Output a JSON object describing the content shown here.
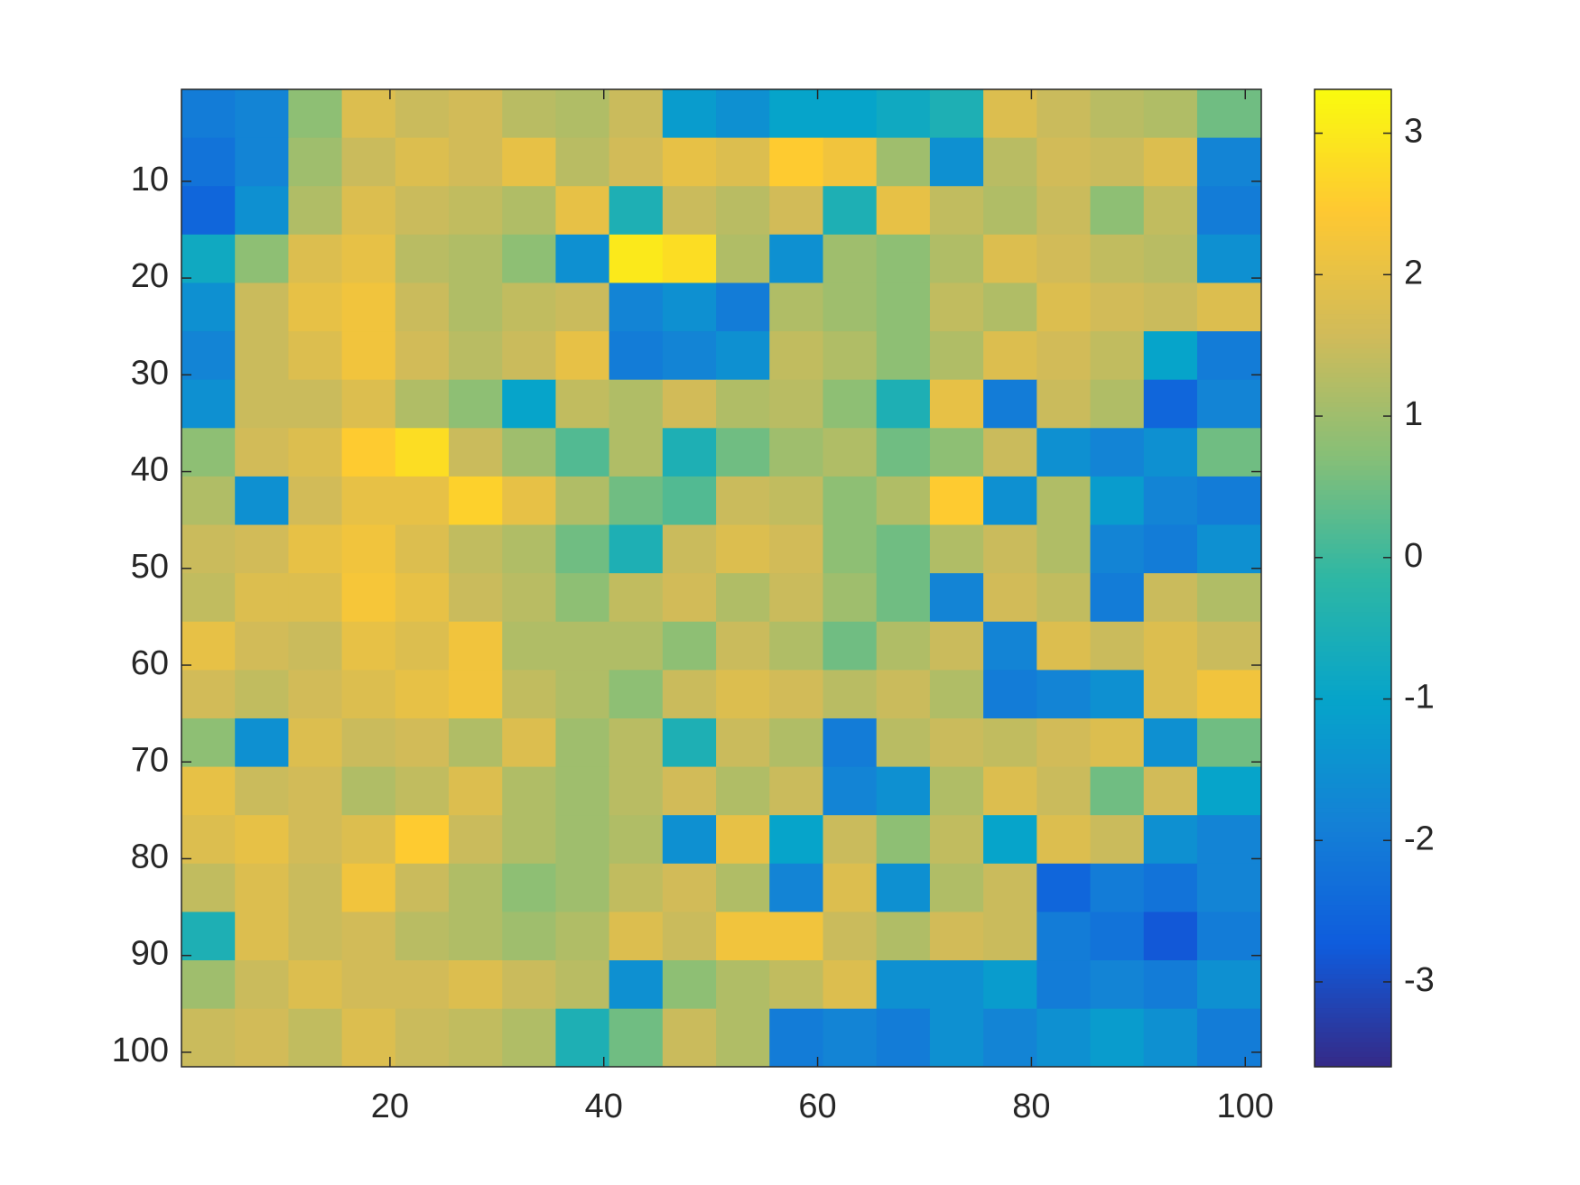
{
  "chart_data": {
    "type": "heatmap",
    "x_edges": [
      0.5,
      5.5,
      10.5,
      15.5,
      20.5,
      25.5,
      30.5,
      35.5,
      40.5,
      45.5,
      50.5,
      55.5,
      60.5,
      65.5,
      70.5,
      75.5,
      80.5,
      85.5,
      90.5,
      95.5,
      101.5
    ],
    "y_edges": [
      0.5,
      5.5,
      10.5,
      15.5,
      20.5,
      25.5,
      30.5,
      35.5,
      40.5,
      45.5,
      50.5,
      55.5,
      60.5,
      65.5,
      70.5,
      75.5,
      80.5,
      85.5,
      90.5,
      95.5,
      101.5
    ],
    "z": [
      [
        -2,
        -1.8,
        0.8,
        1.8,
        1.5,
        1.6,
        1.3,
        1.2,
        1.5,
        -1.2,
        -1.5,
        -1,
        -1,
        -0.8,
        -0.5,
        1.8,
        1.5,
        1.3,
        1.2,
        0.5
      ],
      [
        -2.2,
        -1.8,
        1,
        1.5,
        1.8,
        1.6,
        2,
        1.3,
        1.6,
        2,
        1.8,
        2.5,
        2.2,
        1,
        -1.5,
        1.3,
        1.6,
        1.5,
        1.8,
        -1.8
      ],
      [
        -2.5,
        -1.5,
        1.2,
        1.8,
        1.5,
        1.4,
        1.2,
        2,
        -0.5,
        1.5,
        1.3,
        1.6,
        -0.5,
        2,
        1.4,
        1.2,
        1.5,
        0.8,
        1.4,
        -2
      ],
      [
        -0.8,
        0.8,
        1.8,
        2,
        1.3,
        1.2,
        0.8,
        -1.5,
        3,
        2.8,
        1.2,
        -1.5,
        1,
        0.8,
        1.2,
        1.8,
        1.6,
        1.4,
        1.3,
        -1.5
      ],
      [
        -1.5,
        1.5,
        2,
        2.2,
        1.5,
        1.2,
        1.4,
        1.5,
        -1.8,
        -1.5,
        -2,
        1.2,
        1,
        0.8,
        1.4,
        1.2,
        1.8,
        1.6,
        1.5,
        1.8
      ],
      [
        -1.8,
        1.5,
        1.8,
        2.2,
        1.6,
        1.3,
        1.5,
        2,
        -2,
        -1.8,
        -1.5,
        1.4,
        1.2,
        0.8,
        1.2,
        1.8,
        1.6,
        1.4,
        -1,
        -2
      ],
      [
        -1.5,
        1.5,
        1.5,
        1.8,
        1.2,
        0.8,
        -1,
        1.4,
        1.2,
        1.6,
        1.2,
        1.3,
        0.8,
        -0.5,
        2,
        -2,
        1.5,
        1.2,
        -2.5,
        -1.8
      ],
      [
        0.8,
        1.6,
        1.8,
        2.5,
        2.8,
        1.5,
        1,
        0.2,
        1.2,
        -0.5,
        0.5,
        1,
        1.2,
        0.5,
        0.8,
        1.5,
        -1.5,
        -1.8,
        -1.5,
        0.5
      ],
      [
        1.2,
        -1.5,
        1.6,
        2,
        2,
        2.6,
        2,
        1.2,
        0.5,
        0.2,
        1.5,
        1.4,
        0.8,
        1.2,
        2.5,
        -1.5,
        1.2,
        -1.2,
        -1.8,
        -2
      ],
      [
        1.5,
        1.6,
        2,
        2.2,
        1.8,
        1.4,
        1.2,
        0.5,
        -0.5,
        1.5,
        1.8,
        1.6,
        0.8,
        0.5,
        1.2,
        1.5,
        1.2,
        -1.8,
        -2,
        -1.5
      ],
      [
        1.4,
        1.8,
        1.8,
        2.3,
        2,
        1.5,
        1.3,
        0.8,
        1.4,
        1.6,
        1.2,
        1.5,
        1,
        0.5,
        -1.8,
        1.6,
        1.4,
        -2,
        1.5,
        1.2
      ],
      [
        2,
        1.6,
        1.5,
        2,
        1.8,
        2.2,
        1.2,
        1.2,
        1.2,
        0.8,
        1.5,
        1.2,
        0.5,
        1.2,
        1.5,
        -1.8,
        1.8,
        1.5,
        1.8,
        1.5
      ],
      [
        1.6,
        1.4,
        1.6,
        1.8,
        2,
        2.2,
        1.4,
        1.2,
        0.8,
        1.5,
        1.8,
        1.6,
        1.3,
        1.5,
        1.2,
        -2,
        -1.8,
        -1.5,
        1.8,
        2.2
      ],
      [
        0.8,
        -1.5,
        1.8,
        1.5,
        1.6,
        1.2,
        1.8,
        1,
        1.3,
        -0.5,
        1.5,
        1.2,
        -2,
        1.3,
        1.5,
        1.4,
        1.6,
        1.8,
        -1.5,
        0.5
      ],
      [
        2,
        1.5,
        1.6,
        1.2,
        1.4,
        1.8,
        1.2,
        1,
        1.3,
        1.6,
        1.2,
        1.5,
        -1.8,
        -1.5,
        1.2,
        1.8,
        1.5,
        0.5,
        1.6,
        -1
      ],
      [
        1.8,
        2,
        1.6,
        1.8,
        2.5,
        1.5,
        1.2,
        1,
        1.2,
        -1.5,
        2,
        -1,
        1.5,
        0.8,
        1.4,
        -1,
        1.8,
        1.5,
        -1.5,
        -1.8
      ],
      [
        1.4,
        1.8,
        1.5,
        2.2,
        1.5,
        1.2,
        0.8,
        1,
        1.4,
        1.6,
        1.2,
        -1.8,
        1.8,
        -1.5,
        1.2,
        1.5,
        -2.5,
        -2,
        -2.2,
        -1.8
      ],
      [
        -0.5,
        1.8,
        1.5,
        1.6,
        1.3,
        1.2,
        1,
        1.2,
        1.8,
        1.5,
        2.2,
        2.2,
        1.5,
        1.2,
        1.6,
        1.5,
        -2,
        -2.2,
        -2.8,
        -2
      ],
      [
        1,
        1.5,
        1.8,
        1.6,
        1.6,
        1.8,
        1.5,
        1.3,
        -1.5,
        0.8,
        1.2,
        1.4,
        1.8,
        -1.5,
        -1.5,
        -1.2,
        -2,
        -1.8,
        -2,
        -1.5
      ],
      [
        1.5,
        1.6,
        1.4,
        1.8,
        1.5,
        1.4,
        1.2,
        -0.5,
        0.5,
        1.5,
        1.2,
        -2,
        -1.8,
        -2,
        -1.5,
        -1.8,
        -1.5,
        -1.2,
        -1.5,
        -2
      ]
    ],
    "xlim": [
      0.5,
      101.5
    ],
    "ylim": [
      0.5,
      101.5
    ],
    "y_reversed": true,
    "xticks": [
      20,
      40,
      60,
      80,
      100
    ],
    "yticks": [
      10,
      20,
      30,
      40,
      50,
      60,
      70,
      80,
      90,
      100
    ],
    "clim": [
      -3.6,
      3.31
    ],
    "cticks": [
      -3,
      -2,
      -1,
      0,
      1,
      2,
      3
    ],
    "colormap": [
      "#352a87",
      "#0f5cdd",
      "#1481d6",
      "#06a4ca",
      "#2eb7a4",
      "#87bf77",
      "#d1bb59",
      "#fec832",
      "#f9fb0e"
    ]
  }
}
